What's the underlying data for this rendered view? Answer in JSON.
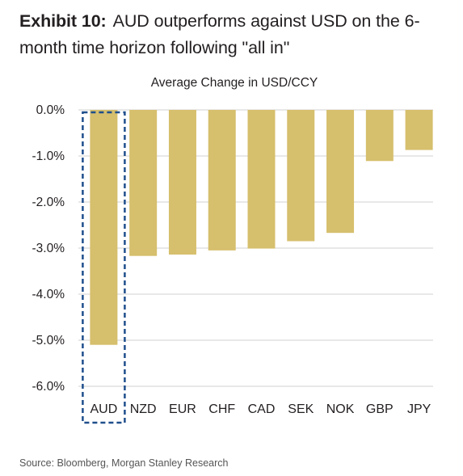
{
  "exhibit": {
    "label": "Exhibit 10:",
    "text": "AUD outperforms against USD on the 6-month time horizon following \"all in\""
  },
  "source": "Source: Bloomberg, Morgan Stanley Research",
  "chart_data": {
    "type": "bar",
    "title": "Average Change in USD/CCY",
    "xlabel": "",
    "ylabel": "",
    "categories": [
      "AUD",
      "NZD",
      "EUR",
      "CHF",
      "CAD",
      "SEK",
      "NOK",
      "GBP",
      "JPY"
    ],
    "values": [
      -5.1,
      -3.17,
      -3.14,
      -3.05,
      -3.01,
      -2.85,
      -2.67,
      -1.11,
      -0.87
    ],
    "ylim": [
      -6.0,
      0.0
    ],
    "yticks": [
      0,
      -1,
      -2,
      -3,
      -4,
      -5,
      -6
    ],
    "ytick_labels": [
      "0.0%",
      "-1.0%",
      "-2.0%",
      "-3.0%",
      "-4.0%",
      "-5.0%",
      "-6.0%"
    ],
    "highlight": "AUD",
    "grid": true,
    "legend": "none",
    "colors": {
      "bar": "#d6bf6d",
      "grid": "#d0d0d0",
      "highlight_box": "#1f4e8c"
    }
  }
}
